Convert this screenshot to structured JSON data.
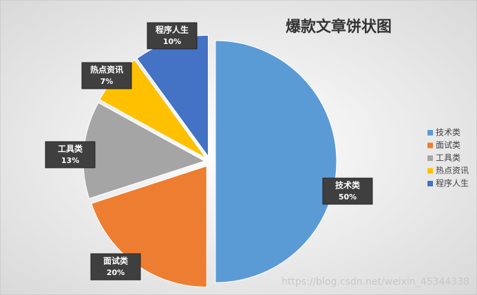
{
  "chart_data": {
    "type": "pie",
    "title": "爆款文章饼状图",
    "categories": [
      "技术类",
      "面试类",
      "工具类",
      "热点资讯",
      "程序人生"
    ],
    "values": [
      50,
      20,
      13,
      7,
      10
    ],
    "value_labels": [
      "50%",
      "20%",
      "13%",
      "7%",
      "10%"
    ],
    "colors": [
      "#5b9bd5",
      "#ed7d31",
      "#a5a5a5",
      "#ffc000",
      "#4472c4"
    ],
    "legend": "right",
    "watermark": "https://blog.csdn.net/weixin_45344338"
  }
}
